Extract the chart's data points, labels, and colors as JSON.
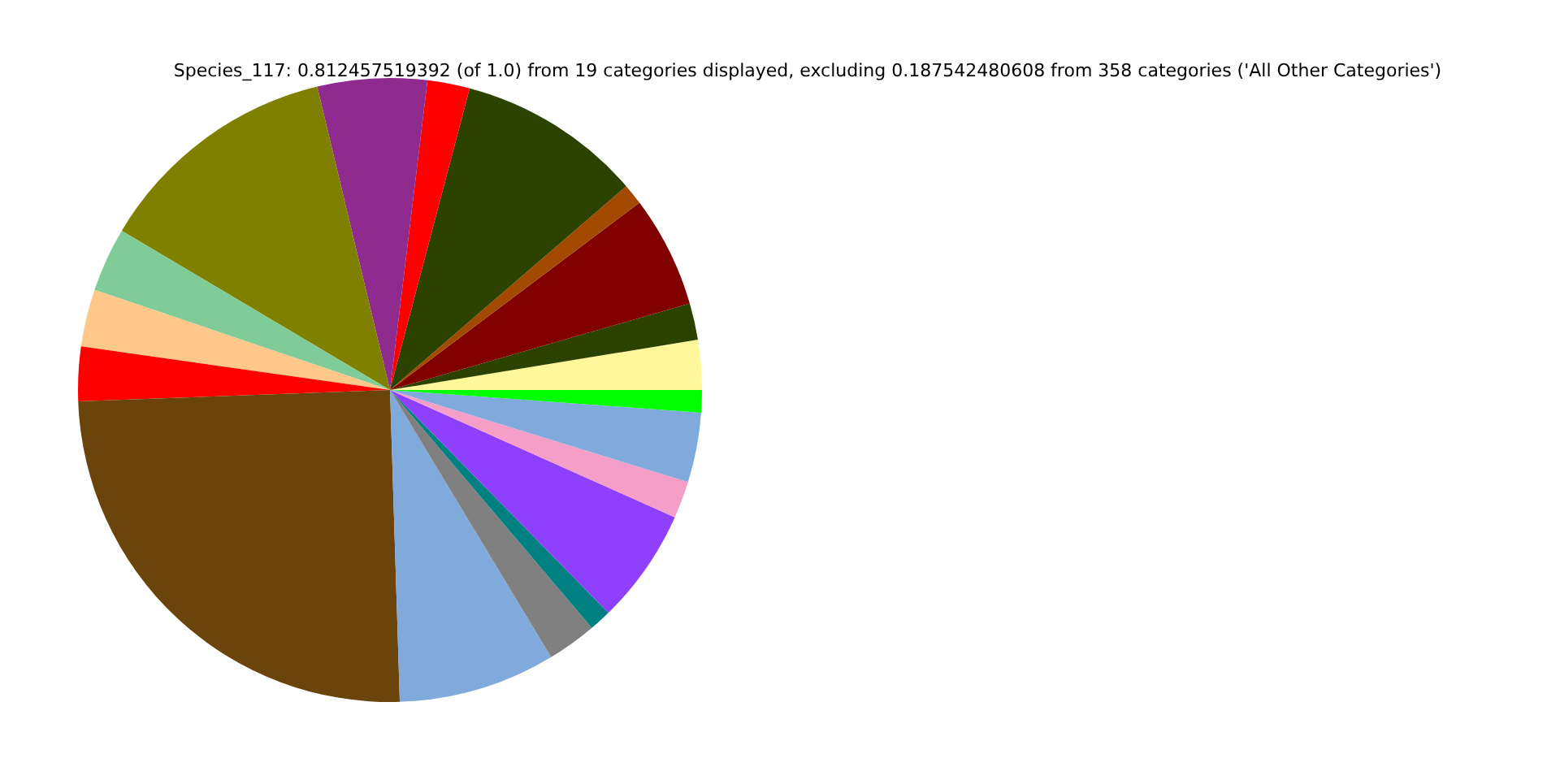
{
  "chart_data": {
    "type": "pie",
    "title": "Species_117: 0.812457519392 (of 1.0) from 19 categories displayed, excluding 0.187542480608 from 358 categories ('All Other Categories')",
    "categories": [
      null,
      null,
      null,
      null,
      null,
      null,
      null,
      null,
      null,
      null,
      null,
      null,
      null,
      null,
      null,
      null,
      null,
      null,
      null
    ],
    "values": [
      2.58,
      1.89,
      5.78,
      1.08,
      9.56,
      2.19,
      5.67,
      12.72,
      3.33,
      2.97,
      2.81,
      24.92,
      8.14,
      2.56,
      1.14,
      5.97,
      1.92,
      3.61,
      1.16
    ],
    "colors": [
      "#fff799",
      "#2b4200",
      "#800000",
      "#a34a00",
      "#2b4200",
      "#ff0000",
      "#8f2a8f",
      "#808000",
      "#80cc99",
      "#ffc78a",
      "#ff0000",
      "#6b440b",
      "#7faadb",
      "#808080",
      "#008080",
      "#8f40ff",
      "#f59ec7",
      "#7faadb",
      "#00ff00"
    ]
  }
}
